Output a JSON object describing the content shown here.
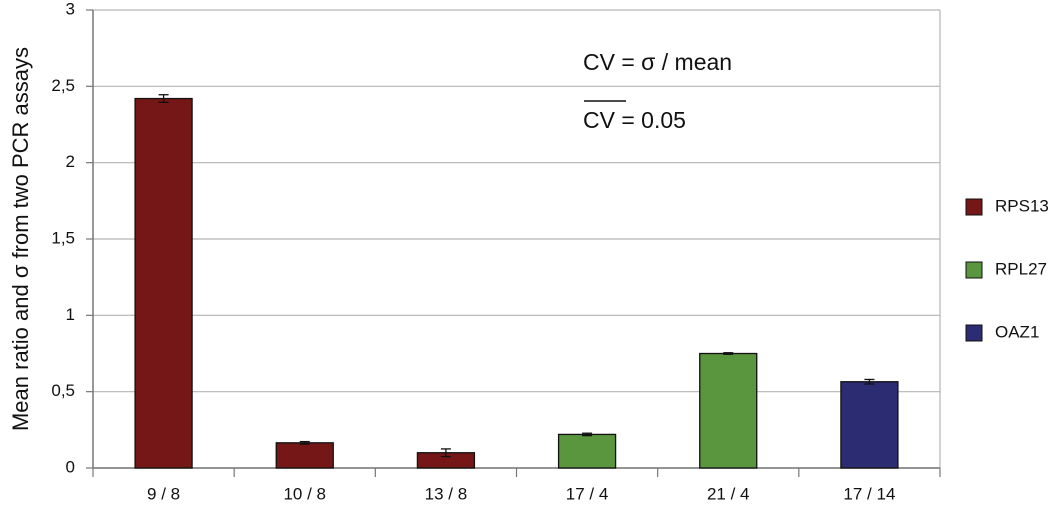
{
  "chart_data": {
    "type": "bar",
    "y_label": "Mean ratio and σ from two PCR assays",
    "annotations": [
      "CV = σ / mean",
      "CV = 0.05"
    ],
    "categories": [
      "9 / 8",
      "10 / 8",
      "13 / 8",
      "17 / 4",
      "21 / 4",
      "17 / 14"
    ],
    "series": [
      {
        "name": "RPS13",
        "color": "#761717",
        "values": [
          2.42,
          0.165,
          0.1,
          null,
          null,
          null
        ],
        "errors": [
          0.025,
          0.008,
          0.025,
          null,
          null,
          null
        ]
      },
      {
        "name": "RPL27",
        "color": "#5a963e",
        "values": [
          null,
          null,
          null,
          0.22,
          0.75,
          null
        ],
        "errors": [
          null,
          null,
          null,
          0.008,
          0.005,
          null
        ]
      },
      {
        "name": "OAZ1",
        "color": "#2b2c72",
        "values": [
          null,
          null,
          null,
          null,
          null,
          0.565
        ],
        "errors": [
          null,
          null,
          null,
          null,
          null,
          0.015
        ]
      }
    ],
    "ylim": [
      0,
      3
    ],
    "yticks": [
      0,
      {
        "value": 0.5,
        "label": "0,5"
      },
      1,
      {
        "value": 1.5,
        "label": "1,5"
      },
      2,
      {
        "value": 2.5,
        "label": "2,5"
      },
      3
    ],
    "grid": true,
    "legend": "right"
  }
}
